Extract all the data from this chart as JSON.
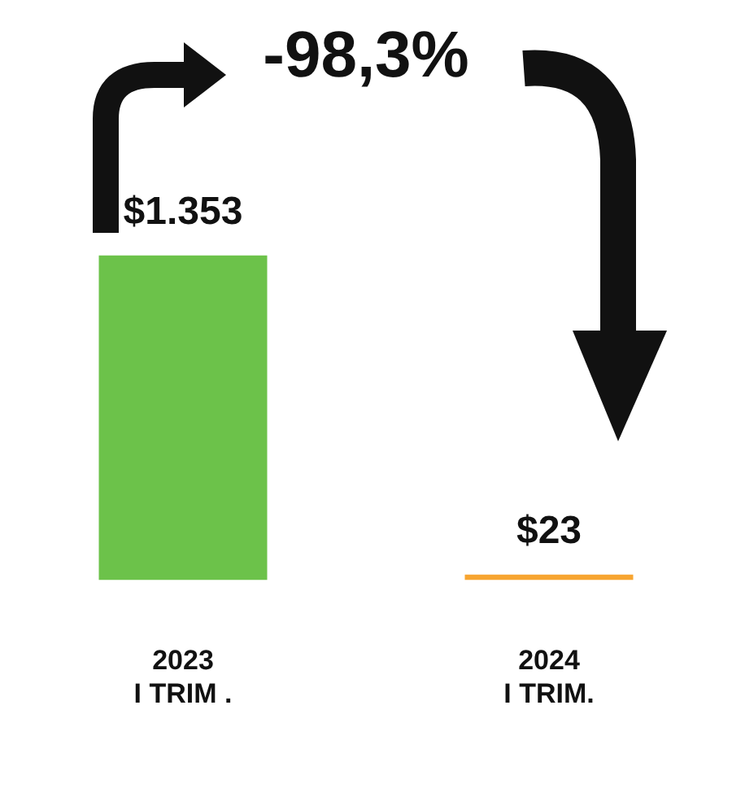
{
  "chart_data": {
    "type": "bar",
    "categories": [
      "2023\nI TRIM .",
      "2024\nI TRIM."
    ],
    "values": [
      1353,
      23
    ],
    "colors": [
      "#6cc24a",
      "#f7a531"
    ],
    "value_labels": [
      "$1.353",
      "$23"
    ],
    "annotations": [
      "-98,3%"
    ],
    "tick_labels": "x",
    "grid": false,
    "legend": false
  }
}
